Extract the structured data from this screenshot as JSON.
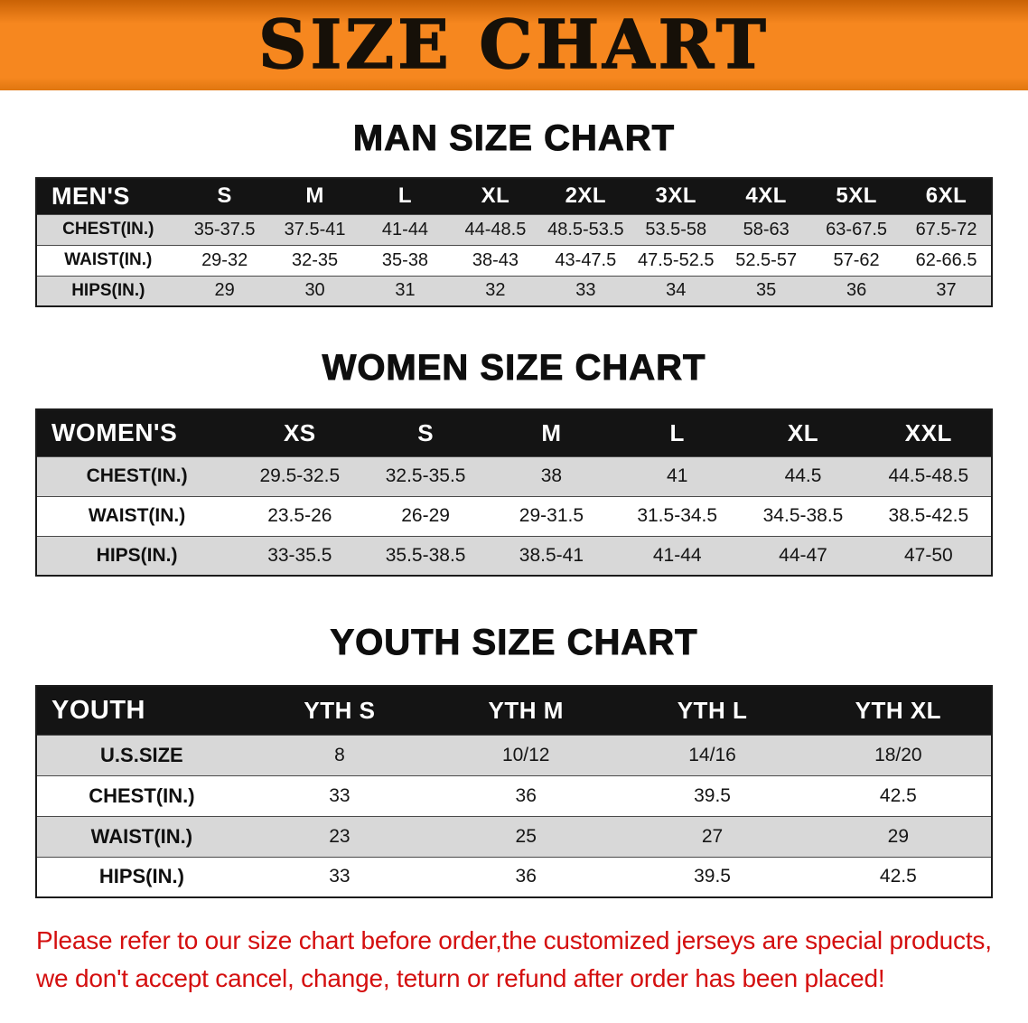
{
  "banner": {
    "title": "SIZE CHART"
  },
  "sections": [
    {
      "heading": "MAN SIZE CHART",
      "corner_label": "MEN'S",
      "columns": [
        "S",
        "M",
        "L",
        "XL",
        "2XL",
        "3XL",
        "4XL",
        "5XL",
        "6XL"
      ],
      "rows": [
        {
          "label": "CHEST(IN.)",
          "values": [
            "35-37.5",
            "37.5-41",
            "41-44",
            "44-48.5",
            "48.5-53.5",
            "53.5-58",
            "58-63",
            "63-67.5",
            "67.5-72"
          ]
        },
        {
          "label": "WAIST(IN.)",
          "values": [
            "29-32",
            "32-35",
            "35-38",
            "38-43",
            "43-47.5",
            "47.5-52.5",
            "52.5-57",
            "57-62",
            "62-66.5"
          ]
        },
        {
          "label": "HIPS(IN.)",
          "values": [
            "29",
            "30",
            "31",
            "32",
            "33",
            "34",
            "35",
            "36",
            "37"
          ]
        }
      ]
    },
    {
      "heading": "WOMEN SIZE CHART",
      "corner_label": "WOMEN'S",
      "columns": [
        "XS",
        "S",
        "M",
        "L",
        "XL",
        "XXL"
      ],
      "rows": [
        {
          "label": "CHEST(IN.)",
          "values": [
            "29.5-32.5",
            "32.5-35.5",
            "38",
            "41",
            "44.5",
            "44.5-48.5"
          ]
        },
        {
          "label": "WAIST(IN.)",
          "values": [
            "23.5-26",
            "26-29",
            "29-31.5",
            "31.5-34.5",
            "34.5-38.5",
            "38.5-42.5"
          ]
        },
        {
          "label": "HIPS(IN.)",
          "values": [
            "33-35.5",
            "35.5-38.5",
            "38.5-41",
            "41-44",
            "44-47",
            "47-50"
          ]
        }
      ]
    },
    {
      "heading": "YOUTH SIZE CHART",
      "corner_label": "YOUTH",
      "columns": [
        "YTH S",
        "YTH M",
        "YTH L",
        "YTH XL"
      ],
      "rows": [
        {
          "label": "U.S.SIZE",
          "values": [
            "8",
            "10/12",
            "14/16",
            "18/20"
          ]
        },
        {
          "label": "CHEST(IN.)",
          "values": [
            "33",
            "36",
            "39.5",
            "42.5"
          ]
        },
        {
          "label": "WAIST(IN.)",
          "values": [
            "23",
            "25",
            "27",
            "29"
          ]
        },
        {
          "label": "HIPS(IN.)",
          "values": [
            "33",
            "36",
            "39.5",
            "42.5"
          ]
        }
      ]
    }
  ],
  "footer": {
    "lines": [
      "Please refer to our size chart before order,the customized jerseys are special products,",
      "we don't accept cancel, change, teturn or refund after order has been placed!"
    ]
  },
  "colors": {
    "banner_orange": "#f6871f",
    "banner_orange_dark": "#c96205",
    "title_black": "#161008",
    "header_black": "#141414",
    "stripe_gray": "#d8d8d8",
    "footer_red": "#d40f0f"
  }
}
